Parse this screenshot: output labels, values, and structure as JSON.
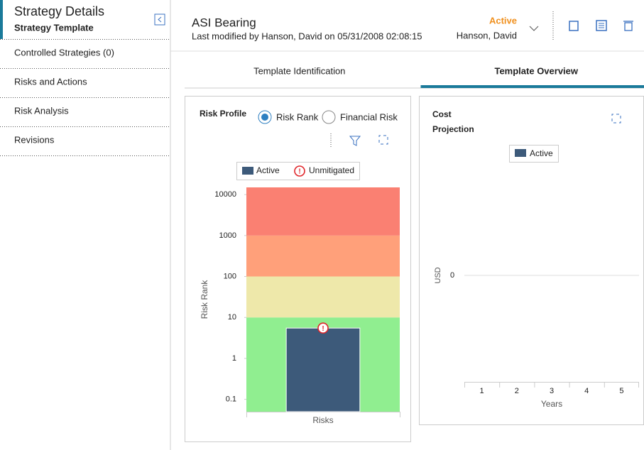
{
  "sidebar": {
    "title": "Strategy Details",
    "subtitle": "Strategy Template",
    "items": [
      "Controlled Strategies (0)",
      "Risks and Actions",
      "Risk Analysis",
      "Revisions"
    ]
  },
  "header": {
    "title": "ASI Bearing",
    "modified": "Last modified by Hanson, David on 05/31/2008 02:08:15",
    "status": "Active",
    "owner": "Hanson, David"
  },
  "tabs": [
    "Template Identification",
    "Template Overview"
  ],
  "active_tab": 1,
  "risk_options": [
    "Risk Rank",
    "Financial Risk"
  ],
  "selected_option": 0,
  "chart_data": [
    {
      "type": "bar",
      "title": "Risk Profile",
      "ylabel": "Risk Rank",
      "log_scale": true,
      "categories": [
        "Risks"
      ],
      "series": [
        {
          "name": "Active",
          "color": "#3d5a7a",
          "values": [
            5.5
          ]
        }
      ],
      "marker_legend": "Unmitigated",
      "marker_color": "#e0262b",
      "ylim": [
        0.05,
        15000
      ],
      "yticks": [
        0.1,
        1,
        10,
        100,
        1000,
        10000
      ],
      "bands": {
        "thresholds": [
          10,
          100,
          1000
        ],
        "colors": [
          "#90ee90",
          "#eee8aa",
          "#ffa07a",
          "#fa8072"
        ]
      }
    },
    {
      "type": "line",
      "title": "Cost Projection",
      "ylabel": "USD",
      "xlabel": "Years",
      "x": [
        1,
        2,
        3,
        4,
        5
      ],
      "series": [
        {
          "name": "Active",
          "color": "#3d5a7a",
          "values": [
            null,
            null,
            null,
            null,
            null
          ]
        }
      ],
      "xlim": [
        0.5,
        5.5
      ],
      "xticks": [
        1,
        2,
        3,
        4,
        5
      ],
      "ylim": [
        -1,
        1
      ],
      "yticks": [
        0
      ],
      "grid": true
    }
  ]
}
